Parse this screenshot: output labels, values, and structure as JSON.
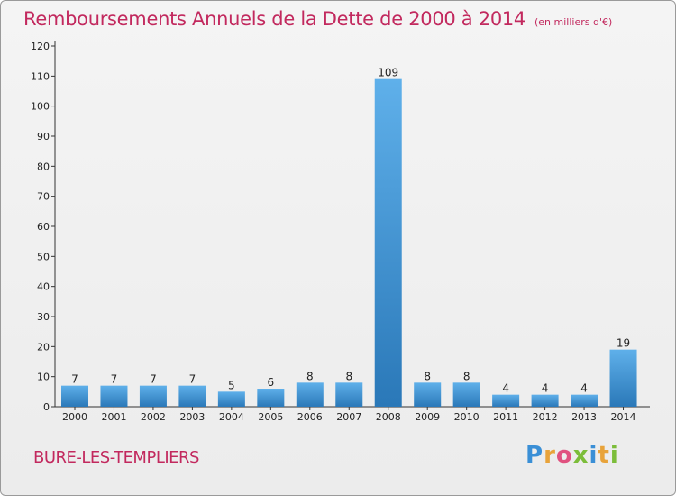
{
  "header": {
    "title": "Remboursements Annuels de la Dette de 2000 à 2014",
    "unit": "(en milliers d'€)"
  },
  "footer": {
    "commune": "BURE-LES-TEMPLIERS",
    "logo_letters": [
      "P",
      "r",
      "o",
      "x",
      "i",
      "t",
      "i"
    ],
    "logo_colors": [
      "#3a8fd6",
      "#e8a33a",
      "#e0517f",
      "#7cbd3a",
      "#3a8fd6",
      "#e8a33a",
      "#7cbd3a"
    ]
  },
  "colors": {
    "title": "#c2295e",
    "bar_top": "#5fb0ea",
    "bar_bottom": "#2a78b8"
  },
  "chart_data": {
    "type": "bar",
    "title": "Remboursements Annuels de la Dette de 2000 à 2014",
    "xlabel": "",
    "ylabel": "en milliers d'€",
    "categories": [
      "2000",
      "2001",
      "2002",
      "2003",
      "2004",
      "2005",
      "2006",
      "2007",
      "2008",
      "2009",
      "2010",
      "2011",
      "2012",
      "2013",
      "2014"
    ],
    "values": [
      7,
      7,
      7,
      7,
      5,
      6,
      8,
      8,
      109,
      8,
      8,
      4,
      4,
      4,
      19
    ],
    "ylim": [
      0,
      120
    ],
    "yticks": [
      0,
      10,
      20,
      30,
      40,
      50,
      60,
      70,
      80,
      90,
      100,
      110,
      120
    ],
    "grid": false,
    "legend": "none"
  }
}
